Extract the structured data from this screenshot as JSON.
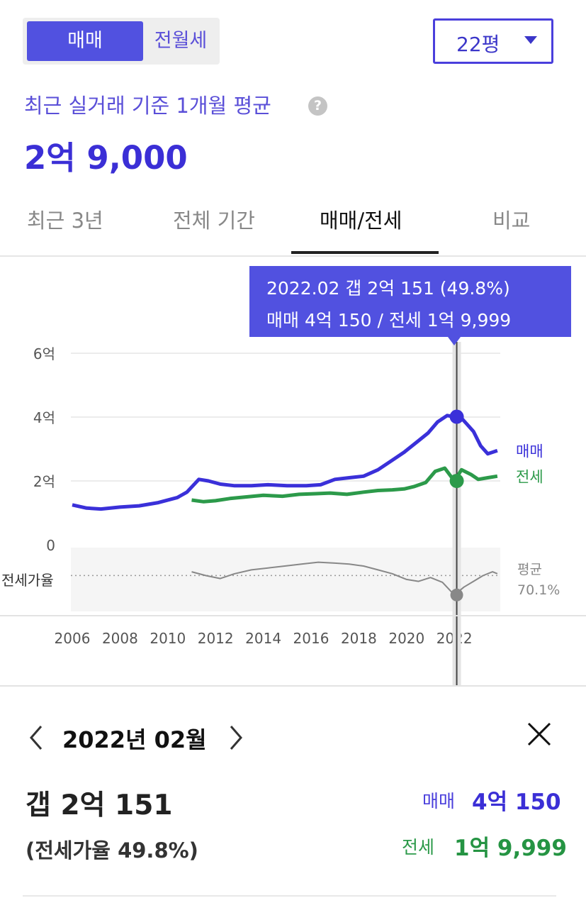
{
  "toggle": {
    "active": "매매",
    "inactive": "전월세"
  },
  "dropdown": {
    "value": "22평"
  },
  "average": {
    "label": "최근 실거래 기준 1개월 평균",
    "value": "2억 9,000"
  },
  "tabs": [
    "최근 3년",
    "전체 기간",
    "매매/전세",
    "비교"
  ],
  "tooltip": {
    "line1": "2022.02  갭 2억 151 (49.8%)",
    "line2": "매매 4억 150 / 전세 1억 9,999"
  },
  "detail": {
    "month": "2022년 02월",
    "gap": "갭 2억 151",
    "ratio": "(전세가율 49.8%)",
    "sale_label": "매매",
    "sale_value": "4억 150",
    "jeonse_label": "전세",
    "jeonse_value": "1억 9,999"
  },
  "colors": {
    "sale": "#3a30d9",
    "jeonse": "#2c9a4a",
    "ratio": "#888888",
    "accent": "#5151e0"
  },
  "chart_data": {
    "type": "line",
    "x_ticks": [
      "2006",
      "2008",
      "2010",
      "2012",
      "2014",
      "2016",
      "2018",
      "2020",
      "2022"
    ],
    "y_ticks": [
      "0",
      "2억",
      "4억",
      "6억"
    ],
    "ylim": [
      0,
      6
    ],
    "series": [
      {
        "name": "매매",
        "unit": "억",
        "x": [
          2006.0,
          2006.6,
          2007.2,
          2008.0,
          2008.8,
          2009.6,
          2010.4,
          2010.8,
          2011.3,
          2011.7,
          2012.2,
          2012.8,
          2013.5,
          2014.2,
          2015.0,
          2015.8,
          2016.4,
          2017.0,
          2017.6,
          2018.2,
          2018.8,
          2019.4,
          2019.9,
          2020.4,
          2020.9,
          2021.3,
          2021.7,
          2022.0,
          2022.2,
          2022.5,
          2022.8,
          2023.1,
          2023.4,
          2023.8
        ],
        "y": [
          1.25,
          1.15,
          1.12,
          1.18,
          1.22,
          1.32,
          1.48,
          1.65,
          2.05,
          2.0,
          1.9,
          1.85,
          1.85,
          1.88,
          1.85,
          1.85,
          1.88,
          2.05,
          2.1,
          2.15,
          2.35,
          2.65,
          2.9,
          3.2,
          3.5,
          3.85,
          4.05,
          4.01,
          4.05,
          3.8,
          3.55,
          3.1,
          2.85,
          2.95
        ]
      },
      {
        "name": "전세",
        "unit": "억",
        "x": [
          2011.0,
          2011.5,
          2012.0,
          2012.6,
          2013.3,
          2014.0,
          2014.8,
          2015.5,
          2016.2,
          2016.8,
          2017.5,
          2018.2,
          2018.8,
          2019.4,
          2019.9,
          2020.3,
          2020.8,
          2021.2,
          2021.6,
          2022.0,
          2022.3,
          2022.7,
          2023.0,
          2023.4,
          2023.8
        ],
        "y": [
          1.4,
          1.35,
          1.38,
          1.45,
          1.5,
          1.55,
          1.52,
          1.58,
          1.6,
          1.62,
          1.58,
          1.65,
          1.7,
          1.72,
          1.75,
          1.82,
          1.95,
          2.3,
          2.4,
          2.0,
          2.35,
          2.2,
          2.05,
          2.1,
          2.15
        ]
      },
      {
        "name": "전세가율",
        "unit": "%",
        "x": [
          2011.0,
          2011.6,
          2012.2,
          2012.8,
          2013.5,
          2014.2,
          2014.9,
          2015.6,
          2016.3,
          2017.0,
          2017.6,
          2018.2,
          2018.8,
          2019.4,
          2020.0,
          2020.5,
          2021.0,
          2021.5,
          2022.0,
          2022.4,
          2022.8,
          2023.2,
          2023.6,
          2023.8
        ],
        "y": [
          74,
          70,
          67,
          72,
          76,
          78,
          80,
          82,
          84,
          83,
          82,
          80,
          76,
          72,
          66,
          64,
          68,
          63,
          49.8,
          58,
          64,
          70,
          74,
          72
        ]
      }
    ],
    "ratio_average": {
      "label": "평균",
      "value": "70.1%"
    },
    "ratio_axis_label": "전세가율",
    "highlight": {
      "x": 2022.1,
      "sale": 4.01,
      "jeonse": 2.0,
      "ratio": 49.8
    }
  }
}
